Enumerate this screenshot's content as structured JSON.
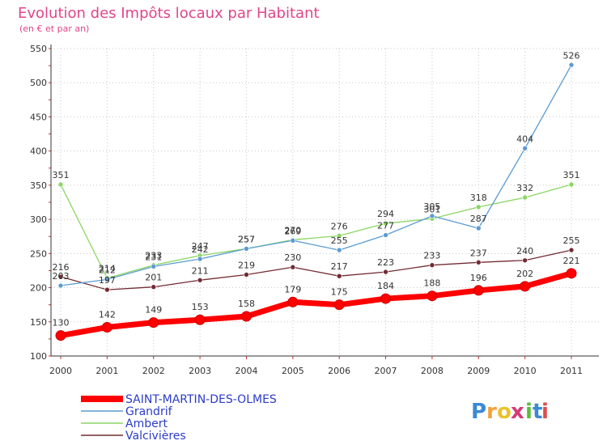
{
  "chart_data": {
    "type": "line",
    "title": "Evolution des Impôts locaux par Habitant",
    "subtitle": "(en € et par an)",
    "xlabel": "",
    "ylabel": "",
    "x": [
      2000,
      2001,
      2002,
      2003,
      2004,
      2005,
      2006,
      2007,
      2008,
      2009,
      2010,
      2011
    ],
    "ylim": [
      100,
      550
    ],
    "yticks": [
      100,
      150,
      200,
      250,
      300,
      350,
      400,
      450,
      500,
      550
    ],
    "grid": true,
    "legend_position": "bottom-left",
    "series": [
      {
        "name": "Valcivières",
        "color": "#722b33",
        "values": [
          216,
          197,
          201,
          211,
          219,
          230,
          217,
          223,
          233,
          237,
          240,
          255
        ],
        "labels": [
          "216",
          "197",
          "201",
          "211",
          "219",
          "230",
          "217",
          "223",
          "233",
          "237",
          "240",
          "255"
        ]
      },
      {
        "name": "Ambert",
        "color": "#8bd663",
        "values": [
          351,
          214,
          233,
          247,
          257,
          270,
          276,
          294,
          301,
          318,
          332,
          351
        ],
        "labels": [
          "351",
          "214",
          "233",
          "247",
          "257",
          "270",
          "276",
          "294",
          "301",
          "318",
          "332",
          "351"
        ]
      },
      {
        "name": "Grandrif",
        "color": "#5b9bd2",
        "values": [
          203,
          212,
          231,
          242,
          257,
          269,
          255,
          277,
          305,
          287,
          404,
          526
        ],
        "labels": [
          "203",
          "212",
          "231",
          "242",
          "257",
          "269",
          "255",
          "277",
          "305",
          "287",
          "404",
          "526"
        ]
      },
      {
        "name": "SAINT-MARTIN-DES-OLMES",
        "color": "#ff0000",
        "values": [
          130,
          142,
          149,
          153,
          158,
          179,
          175,
          184,
          188,
          196,
          202,
          221
        ],
        "labels": [
          "130",
          "142",
          "149",
          "153",
          "158",
          "179",
          "175",
          "184",
          "188",
          "196",
          "202",
          "221"
        ]
      }
    ],
    "legend": [
      "SAINT-MARTIN-DES-OLMES",
      "Grandrif",
      "Ambert",
      "Valcivières"
    ]
  },
  "logo": {
    "letters": [
      "P",
      "r",
      "o",
      "x",
      "i",
      "t",
      "i"
    ],
    "colors": [
      "#3a8ad6",
      "#f2a33a",
      "#e9c32b",
      "#d23b78",
      "#5bbd3a",
      "#3a8ad6",
      "#e04c4c"
    ]
  }
}
